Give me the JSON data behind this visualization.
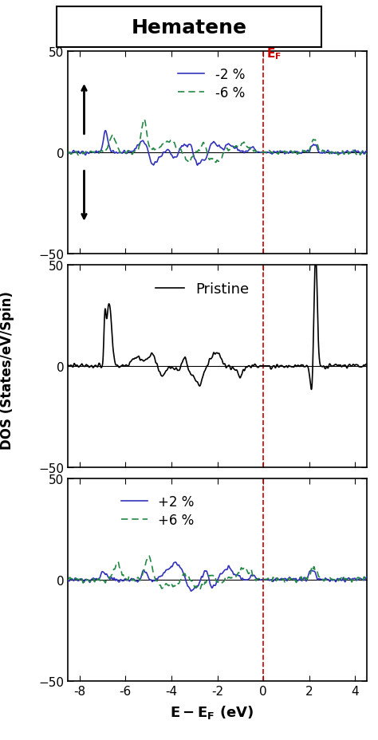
{
  "title": "Hematene",
  "xlabel": "E - E$_F$ (eV)",
  "ylabel": "DOS (States/eV/Spin)",
  "xlim": [
    -8.5,
    4.5
  ],
  "ylim": [
    -50,
    50
  ],
  "xticks": [
    -8,
    -6,
    -4,
    -2,
    0,
    2,
    4
  ],
  "yticks": [
    -50,
    0,
    50
  ],
  "ef_line_x": 0.0,
  "panel1_legend": [
    "-2 %",
    "-6 %"
  ],
  "panel2_legend": [
    "Pristine"
  ],
  "panel3_legend": [
    "+2 %",
    "+6 %"
  ],
  "line_color_blue": "#3333bb",
  "line_color_green": "#228844",
  "line_color_black": "#000000",
  "ef_color": "#cc0000",
  "background": "#ffffff"
}
